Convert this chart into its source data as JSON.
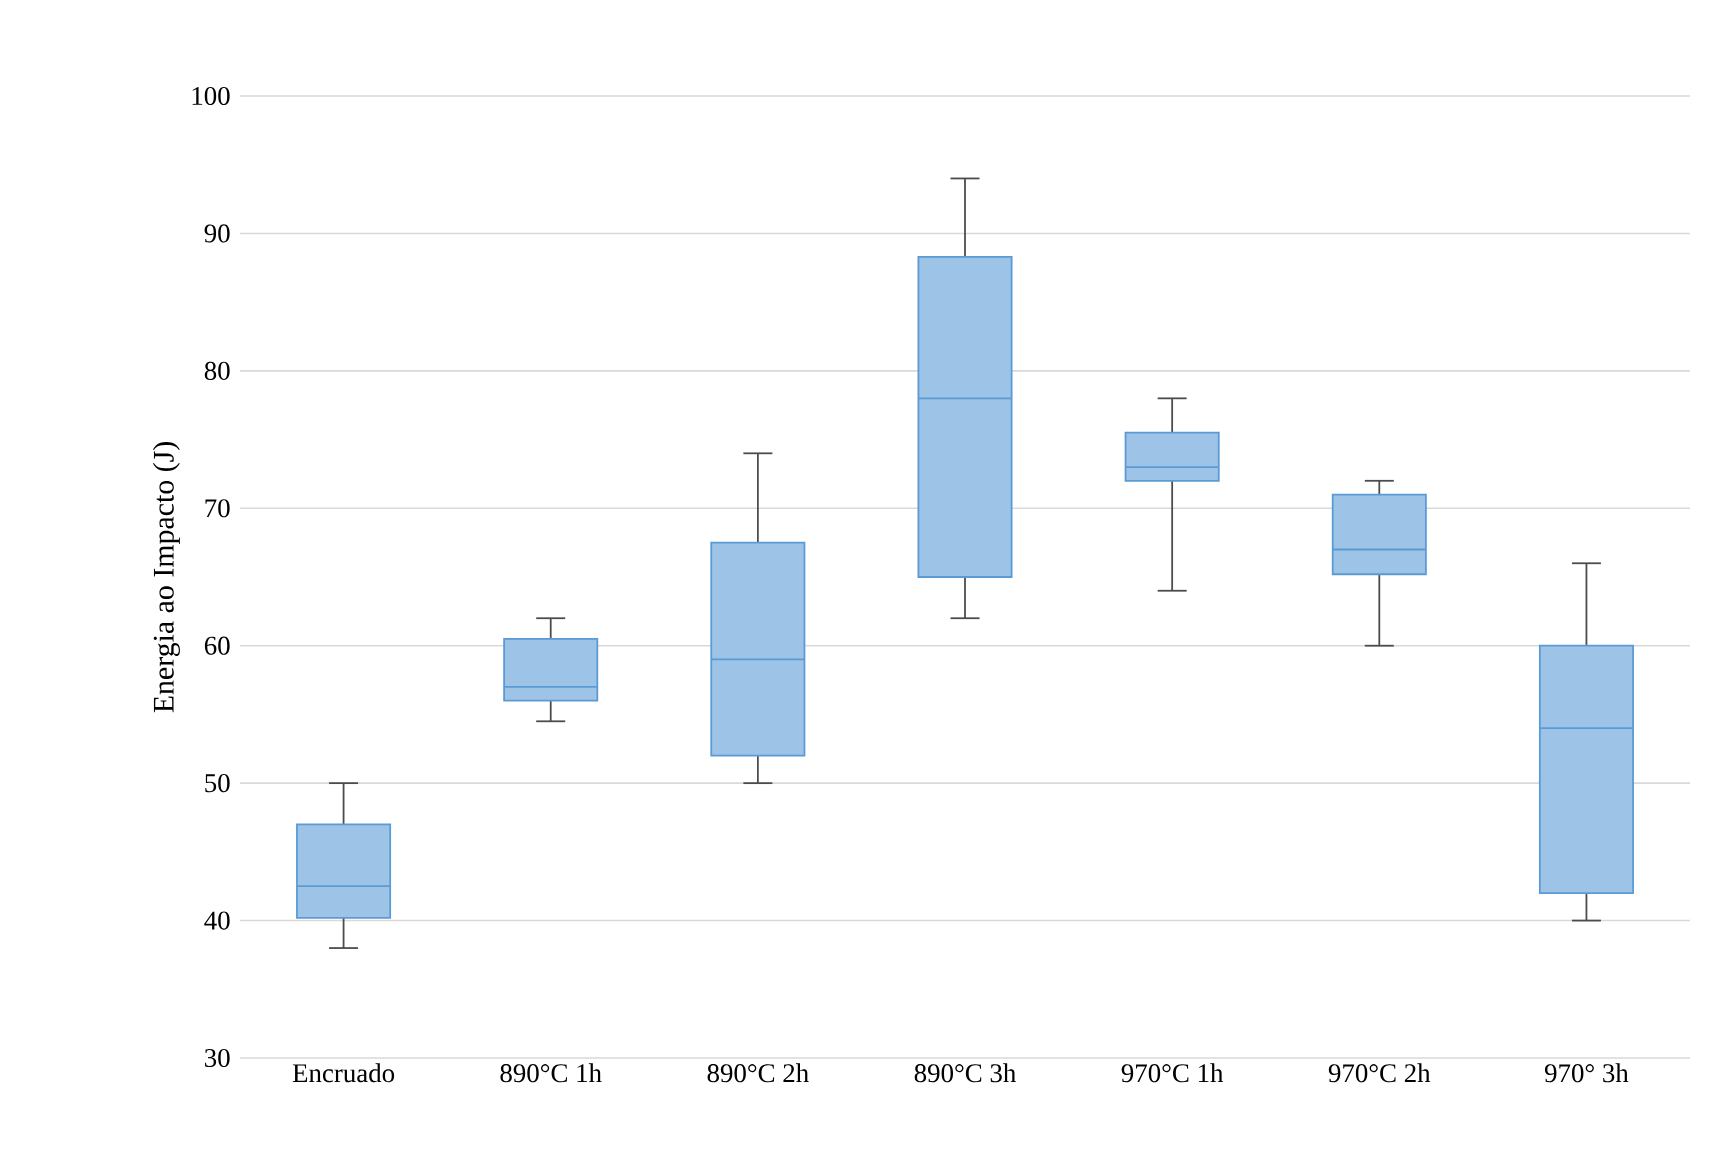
{
  "chart_data": {
    "type": "box",
    "ylabel": "Energia ao Impacto (J)",
    "categories": [
      "Encruado",
      "890°C 1h",
      "890°C 2h",
      "890°C 3h",
      "970°C 1h",
      "970°C 2h",
      "970°  3h"
    ],
    "boxes": [
      {
        "low": 38,
        "q1": 40.2,
        "median": 42.5,
        "q3": 47,
        "high": 50
      },
      {
        "low": 54.5,
        "q1": 56,
        "median": 57,
        "q3": 60.5,
        "high": 62
      },
      {
        "low": 50,
        "q1": 52,
        "median": 59,
        "q3": 67.5,
        "high": 74
      },
      {
        "low": 62,
        "q1": 65,
        "median": 78,
        "q3": 88.3,
        "high": 94
      },
      {
        "low": 64,
        "q1": 72,
        "median": 73,
        "q3": 75.5,
        "high": 78
      },
      {
        "low": 60,
        "q1": 65.2,
        "median": 67,
        "q3": 71,
        "high": 72
      },
      {
        "low": 40,
        "q1": 42,
        "median": 54,
        "q3": 60,
        "high": 66
      }
    ],
    "color": "#5b9bd5",
    "ylim": [
      30,
      100
    ],
    "yticks": [
      30,
      40,
      50,
      60,
      70,
      80,
      90,
      100
    ],
    "grid": "y"
  }
}
